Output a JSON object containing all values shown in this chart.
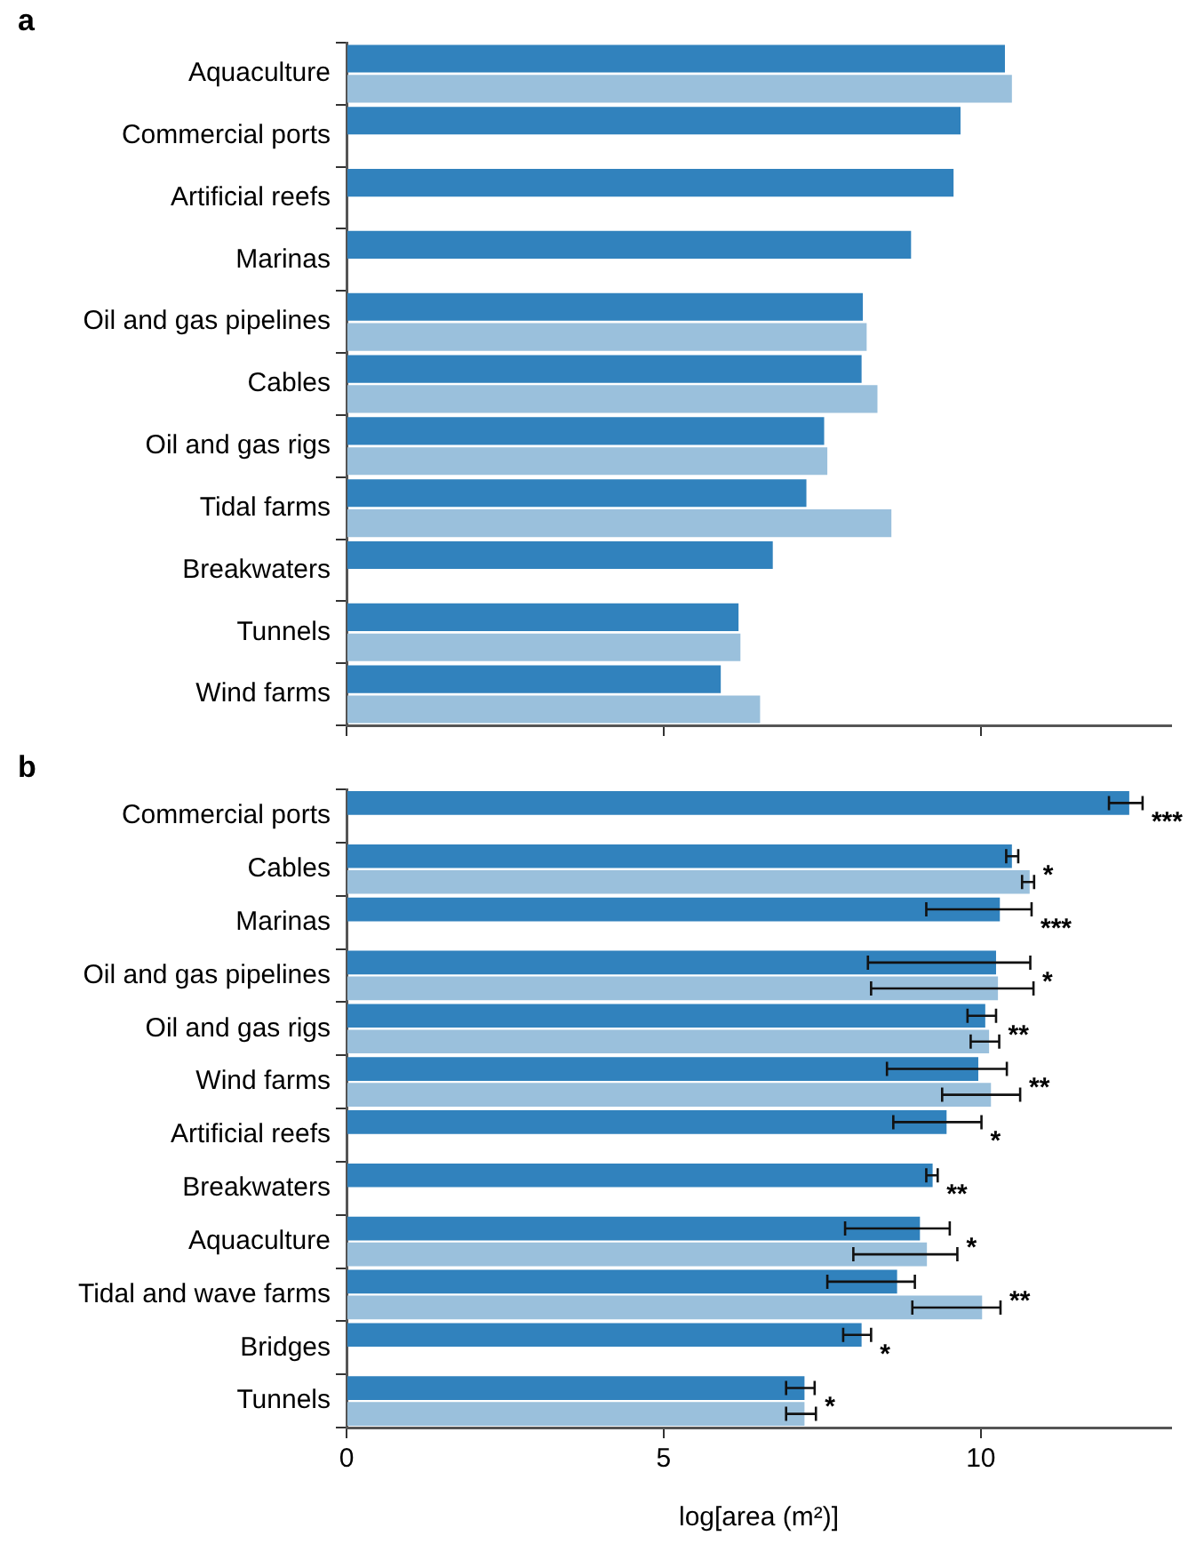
{
  "chart_data": [
    {
      "type": "bar",
      "title": "a",
      "orientation": "horizontal",
      "categories": [
        "Aquaculture",
        "Commercial ports",
        "Artificial reefs",
        "Marinas",
        "Oil and gas pipelines",
        "Cables",
        "Oil and gas rigs",
        "Tidal farms",
        "Breakwaters",
        "Tunnels",
        "Wind farms"
      ],
      "series": [
        {
          "color": "#3182bd",
          "values": [
            10.38,
            9.68,
            9.57,
            8.9,
            8.14,
            8.12,
            7.53,
            7.25,
            6.72,
            6.18,
            5.9
          ]
        },
        {
          "color": "#9ac0dc",
          "values": [
            10.49,
            null,
            null,
            null,
            8.2,
            8.37,
            7.58,
            8.59,
            null,
            6.21,
            6.52
          ]
        }
      ],
      "xlim": [
        0,
        13
      ],
      "xticks": [
        0,
        5,
        10
      ],
      "tick_labels": "y",
      "grid": false,
      "legend": false
    },
    {
      "type": "bar",
      "title": "b",
      "orientation": "horizontal",
      "xlabel": "log[area (m²)]",
      "categories": [
        "Commercial ports",
        "Cables",
        "Marinas",
        "Oil and gas pipelines",
        "Oil and gas rigs",
        "Wind farms",
        "Artificial reefs",
        "Breakwaters",
        "Aquaculture",
        "Tidal and wave farms",
        "Bridges",
        "Tunnels"
      ],
      "series": [
        {
          "color": "#3182bd",
          "values": [
            12.34,
            10.49,
            10.3,
            10.24,
            10.07,
            9.96,
            9.46,
            9.24,
            9.04,
            8.68,
            8.12,
            7.22
          ],
          "errors": [
            [
              12.02,
              12.55
            ],
            [
              10.4,
              10.59
            ],
            [
              9.14,
              10.8
            ],
            [
              8.22,
              10.78
            ],
            [
              9.79,
              10.24
            ],
            [
              8.52,
              10.41
            ],
            [
              8.62,
              10.01
            ],
            [
              9.14,
              9.32
            ],
            [
              7.86,
              9.51
            ],
            [
              7.58,
              8.96
            ],
            [
              7.83,
              8.27
            ],
            [
              6.93,
              7.38
            ]
          ]
        },
        {
          "color": "#9ac0dc",
          "values": [
            null,
            10.77,
            null,
            10.27,
            10.13,
            10.16,
            null,
            null,
            9.15,
            10.02,
            null,
            7.22
          ],
          "errors": [
            null,
            [
              10.65,
              10.84
            ],
            null,
            [
              8.27,
              10.83
            ],
            [
              9.84,
              10.29
            ],
            [
              9.39,
              10.62
            ],
            null,
            null,
            [
              7.99,
              9.63
            ],
            [
              8.92,
              10.31
            ],
            null,
            [
              6.93,
              7.4
            ]
          ]
        }
      ],
      "annotations": [
        {
          "text": "***",
          "x": 12.55,
          "y": "Commercial ports"
        },
        {
          "text": "*",
          "x": 10.84,
          "y": "Cables"
        },
        {
          "text": "***",
          "x": 10.8,
          "y": "Marinas"
        },
        {
          "text": "*",
          "x": 10.83,
          "y": "Oil and gas pipelines"
        },
        {
          "text": "**",
          "x": 10.29,
          "y": "Oil and gas rigs"
        },
        {
          "text": "**",
          "x": 10.62,
          "y": "Wind farms"
        },
        {
          "text": "*",
          "x": 10.01,
          "y": "Artificial reefs"
        },
        {
          "text": "**",
          "x": 9.32,
          "y": "Breakwaters"
        },
        {
          "text": "*",
          "x": 9.63,
          "y": "Aquaculture"
        },
        {
          "text": "**",
          "x": 10.31,
          "y": "Tidal and wave farms"
        },
        {
          "text": "*",
          "x": 8.27,
          "y": "Bridges"
        },
        {
          "text": "*",
          "x": 7.4,
          "y": "Tunnels"
        }
      ],
      "xlim": [
        0,
        13
      ],
      "xticks": [
        0,
        5,
        10
      ],
      "grid": false,
      "legend": false
    }
  ]
}
